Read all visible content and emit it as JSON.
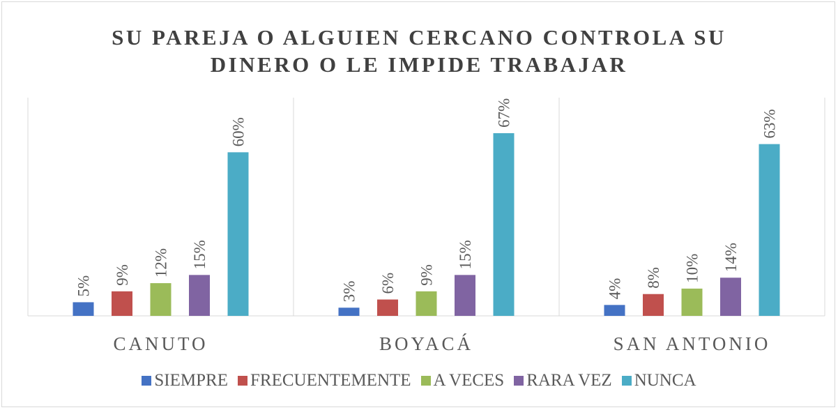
{
  "chart_data": {
    "type": "bar",
    "title": "SU PAREJA O ALGUIEN CERCANO CONTROLA SU DINERO O LE IMPIDE TRABAJAR",
    "categories": [
      "CANUTO",
      "BOYACÁ",
      "SAN ANTONIO"
    ],
    "series": [
      {
        "name": "SIEMPRE",
        "color": "#4472c4",
        "values": [
          5,
          3,
          4
        ],
        "value_labels": [
          "5%",
          "3%",
          "4%"
        ]
      },
      {
        "name": "FRECUENTEMENTE",
        "color": "#c0504d",
        "values": [
          9,
          6,
          8
        ],
        "value_labels": [
          "9%",
          "6%",
          "8%"
        ]
      },
      {
        "name": "A VECES",
        "color": "#9bbb59",
        "values": [
          12,
          9,
          10
        ],
        "value_labels": [
          "12%",
          "9%",
          "10%"
        ]
      },
      {
        "name": "RARA VEZ",
        "color": "#8064a2",
        "values": [
          15,
          15,
          14
        ],
        "value_labels": [
          "15%",
          "15%",
          "14%"
        ]
      },
      {
        "name": "NUNCA",
        "color": "#4bacc6",
        "values": [
          60,
          67,
          63
        ],
        "value_labels": [
          "60%",
          "67%",
          "63%"
        ]
      }
    ],
    "legend": "bottom"
  }
}
